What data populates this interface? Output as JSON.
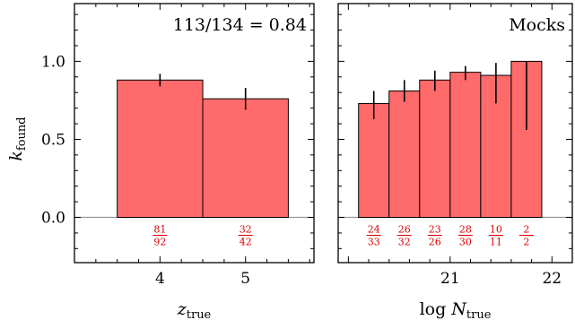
{
  "colors": {
    "bar_fill": "#ff6b6b",
    "bar_edge": "#000000",
    "fraction_text": "#dd0000",
    "zero_line": "#999999",
    "axis": "#000000"
  },
  "shared": {
    "ylabel": "k",
    "ylabel_sub": "found",
    "yticks": [
      0.0,
      0.5,
      1.0
    ],
    "ytick_labels": [
      "0.0",
      "0.5",
      "1.0"
    ],
    "ylim": [
      -0.29,
      1.37
    ]
  },
  "chart_data": [
    {
      "type": "bar",
      "annotation": "113/134 = 0.84",
      "xlabel": "z",
      "xlabel_sub": "true",
      "xlim": [
        3.0,
        5.8
      ],
      "xticks": [
        4,
        5
      ],
      "xtick_labels": [
        "4",
        "5"
      ],
      "bins": [
        {
          "x0": 3.5,
          "x1": 4.5,
          "value": 0.88,
          "err": [
            0.84,
            0.92
          ],
          "num": "81",
          "den": "92",
          "label_x": 4.0
        },
        {
          "x0": 4.5,
          "x1": 5.5,
          "value": 0.76,
          "err": [
            0.69,
            0.83
          ],
          "num": "32",
          "den": "42",
          "label_x": 5.0
        }
      ]
    },
    {
      "type": "bar",
      "annotation": "Mocks",
      "xlabel": "log N",
      "xlabel_sub": "true",
      "xlim": [
        19.9,
        22.2
      ],
      "xticks": [
        21,
        22
      ],
      "xtick_labels": [
        "21",
        "22"
      ],
      "bins": [
        {
          "x0": 20.1,
          "x1": 20.4,
          "value": 0.73,
          "err": [
            0.63,
            0.81
          ],
          "num": "24",
          "den": "33",
          "label_x": 20.25
        },
        {
          "x0": 20.4,
          "x1": 20.7,
          "value": 0.81,
          "err": [
            0.74,
            0.88
          ],
          "num": "26",
          "den": "32",
          "label_x": 20.55
        },
        {
          "x0": 20.7,
          "x1": 21.0,
          "value": 0.88,
          "err": [
            0.81,
            0.94
          ],
          "num": "23",
          "den": "26",
          "label_x": 20.85
        },
        {
          "x0": 21.0,
          "x1": 21.3,
          "value": 0.93,
          "err": [
            0.88,
            0.97
          ],
          "num": "28",
          "den": "30",
          "label_x": 21.15
        },
        {
          "x0": 21.3,
          "x1": 21.6,
          "value": 0.91,
          "err": [
            0.73,
            0.99
          ],
          "num": "10",
          "den": "11",
          "label_x": 21.45
        },
        {
          "x0": 21.6,
          "x1": 21.9,
          "value": 1.0,
          "err": [
            0.56,
            1.0
          ],
          "num": "2",
          "den": "2",
          "label_x": 21.75
        }
      ]
    }
  ]
}
